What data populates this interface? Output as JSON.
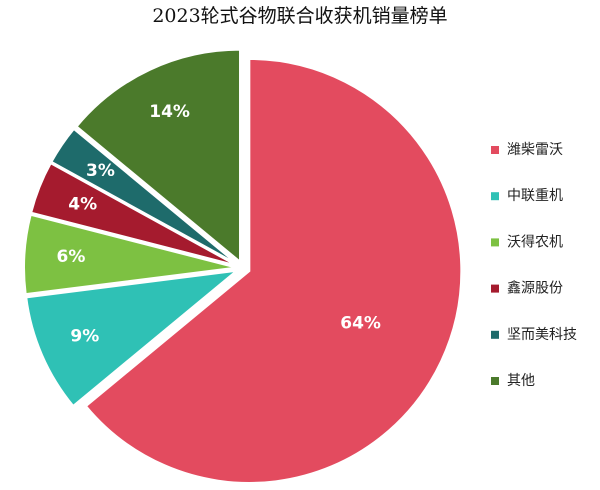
{
  "chart_data": {
    "type": "pie",
    "title": "2023轮式谷物联合收获机销量榜单",
    "categories": [
      "潍柴雷沃",
      "中联重机",
      "沃得农机",
      "鑫源股份",
      "坚而美科技",
      "其他"
    ],
    "values": [
      64,
      9,
      6,
      4,
      3,
      14
    ],
    "value_labels": [
      "64%",
      "9%",
      "6%",
      "4%",
      "3%",
      "14%"
    ],
    "colors": [
      "#e34b5f",
      "#2fc1b5",
      "#7dc142",
      "#a51b2e",
      "#1e6b6b",
      "#4b7a2b"
    ],
    "legend": "right"
  }
}
